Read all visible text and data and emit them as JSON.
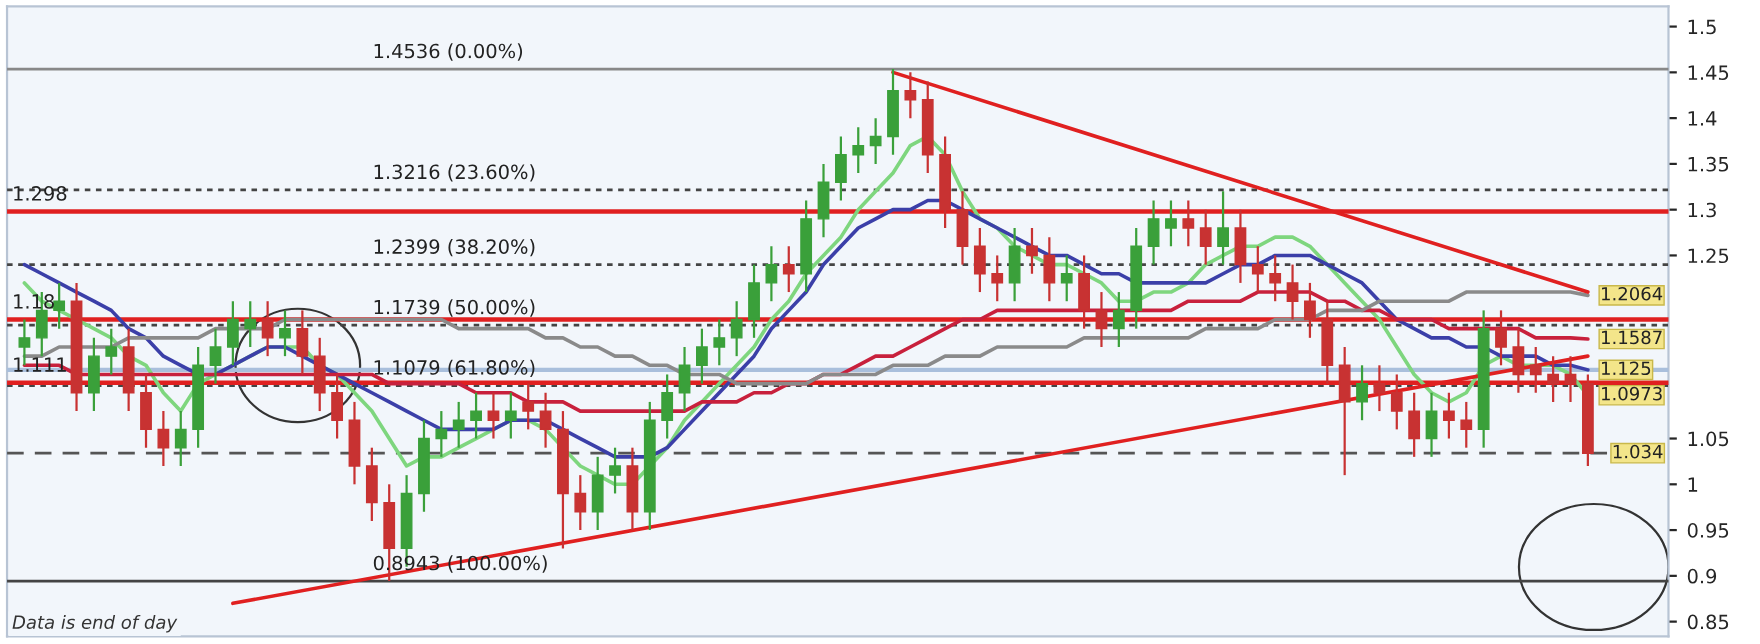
{
  "chart_data": {
    "type": "candlestick",
    "categories": [
      null,
      null,
      null,
      null,
      null,
      null,
      null,
      null,
      null,
      null,
      null,
      null,
      null,
      null,
      null,
      null,
      null,
      null,
      null,
      null,
      null,
      null,
      null,
      null,
      null,
      null,
      null,
      null,
      null,
      null,
      null,
      null,
      null,
      null,
      null,
      null,
      null,
      null,
      null,
      null,
      null,
      null,
      null,
      null,
      null,
      null,
      null,
      null,
      null,
      null,
      null,
      null,
      null,
      null,
      null,
      null,
      null,
      null,
      null,
      null,
      null,
      null,
      null,
      null,
      null,
      null,
      null,
      null,
      null,
      null,
      null,
      null,
      null,
      null,
      null,
      null,
      null,
      null,
      null,
      null,
      null,
      null,
      null,
      null,
      null,
      null,
      null,
      null,
      null,
      null,
      null
    ],
    "ohlc": [
      [
        1.15,
        1.18,
        1.13,
        1.16
      ],
      [
        1.16,
        1.21,
        1.14,
        1.19
      ],
      [
        1.19,
        1.22,
        1.17,
        1.2
      ],
      [
        1.2,
        1.22,
        1.08,
        1.1
      ],
      [
        1.1,
        1.16,
        1.08,
        1.14
      ],
      [
        1.14,
        1.17,
        1.12,
        1.15
      ],
      [
        1.15,
        1.17,
        1.08,
        1.1
      ],
      [
        1.1,
        1.12,
        1.04,
        1.06
      ],
      [
        1.06,
        1.08,
        1.02,
        1.04
      ],
      [
        1.04,
        1.08,
        1.02,
        1.06
      ],
      [
        1.06,
        1.15,
        1.04,
        1.13
      ],
      [
        1.13,
        1.17,
        1.11,
        1.15
      ],
      [
        1.15,
        1.2,
        1.13,
        1.18
      ],
      [
        1.17,
        1.2,
        1.15,
        1.18
      ],
      [
        1.18,
        1.2,
        1.14,
        1.16
      ],
      [
        1.16,
        1.19,
        1.14,
        1.17
      ],
      [
        1.17,
        1.19,
        1.12,
        1.14
      ],
      [
        1.14,
        1.16,
        1.08,
        1.1
      ],
      [
        1.1,
        1.12,
        1.05,
        1.07
      ],
      [
        1.07,
        1.09,
        1.0,
        1.02
      ],
      [
        1.02,
        1.04,
        0.96,
        0.98
      ],
      [
        0.98,
        1.0,
        0.8943,
        0.93
      ],
      [
        0.93,
        1.01,
        0.91,
        0.99
      ],
      [
        0.99,
        1.07,
        0.97,
        1.05
      ],
      [
        1.05,
        1.08,
        1.03,
        1.06
      ],
      [
        1.06,
        1.09,
        1.04,
        1.07
      ],
      [
        1.07,
        1.1,
        1.05,
        1.08
      ],
      [
        1.08,
        1.1,
        1.05,
        1.07
      ],
      [
        1.07,
        1.1,
        1.05,
        1.08
      ],
      [
        1.09,
        1.11,
        1.06,
        1.08
      ],
      [
        1.08,
        1.1,
        1.04,
        1.06
      ],
      [
        1.06,
        1.08,
        0.93,
        0.99
      ],
      [
        0.99,
        1.01,
        0.95,
        0.97
      ],
      [
        0.97,
        1.03,
        0.95,
        1.01
      ],
      [
        1.01,
        1.04,
        0.99,
        1.02
      ],
      [
        1.02,
        1.04,
        0.95,
        0.97
      ],
      [
        0.97,
        1.09,
        0.95,
        1.07
      ],
      [
        1.07,
        1.12,
        1.05,
        1.1
      ],
      [
        1.1,
        1.15,
        1.08,
        1.13
      ],
      [
        1.13,
        1.17,
        1.11,
        1.15
      ],
      [
        1.15,
        1.18,
        1.13,
        1.16
      ],
      [
        1.16,
        1.2,
        1.14,
        1.18
      ],
      [
        1.18,
        1.24,
        1.16,
        1.22
      ],
      [
        1.22,
        1.26,
        1.2,
        1.24
      ],
      [
        1.24,
        1.26,
        1.21,
        1.23
      ],
      [
        1.23,
        1.31,
        1.21,
        1.29
      ],
      [
        1.29,
        1.35,
        1.27,
        1.33
      ],
      [
        1.33,
        1.38,
        1.31,
        1.36
      ],
      [
        1.36,
        1.39,
        1.34,
        1.37
      ],
      [
        1.37,
        1.4,
        1.35,
        1.38
      ],
      [
        1.38,
        1.4536,
        1.36,
        1.43
      ],
      [
        1.43,
        1.45,
        1.4,
        1.42
      ],
      [
        1.42,
        1.44,
        1.34,
        1.36
      ],
      [
        1.36,
        1.38,
        1.28,
        1.3
      ],
      [
        1.3,
        1.32,
        1.24,
        1.26
      ],
      [
        1.26,
        1.28,
        1.21,
        1.23
      ],
      [
        1.23,
        1.25,
        1.2,
        1.22
      ],
      [
        1.22,
        1.28,
        1.2,
        1.26
      ],
      [
        1.26,
        1.28,
        1.23,
        1.25
      ],
      [
        1.25,
        1.27,
        1.2,
        1.22
      ],
      [
        1.22,
        1.25,
        1.2,
        1.23
      ],
      [
        1.23,
        1.25,
        1.17,
        1.19
      ],
      [
        1.19,
        1.21,
        1.15,
        1.17
      ],
      [
        1.17,
        1.21,
        1.15,
        1.19
      ],
      [
        1.19,
        1.28,
        1.17,
        1.26
      ],
      [
        1.26,
        1.31,
        1.24,
        1.29
      ],
      [
        1.28,
        1.31,
        1.26,
        1.29
      ],
      [
        1.29,
        1.31,
        1.26,
        1.28
      ],
      [
        1.28,
        1.3,
        1.24,
        1.26
      ],
      [
        1.26,
        1.32,
        1.24,
        1.28
      ],
      [
        1.28,
        1.3,
        1.22,
        1.24
      ],
      [
        1.24,
        1.26,
        1.21,
        1.23
      ],
      [
        1.23,
        1.25,
        1.2,
        1.22
      ],
      [
        1.22,
        1.24,
        1.18,
        1.2
      ],
      [
        1.2,
        1.22,
        1.16,
        1.18
      ],
      [
        1.18,
        1.2,
        1.11,
        1.13
      ],
      [
        1.13,
        1.15,
        1.01,
        1.09
      ],
      [
        1.09,
        1.13,
        1.07,
        1.11
      ],
      [
        1.11,
        1.13,
        1.08,
        1.1
      ],
      [
        1.1,
        1.12,
        1.06,
        1.08
      ],
      [
        1.08,
        1.1,
        1.03,
        1.05
      ],
      [
        1.05,
        1.1,
        1.03,
        1.08
      ],
      [
        1.08,
        1.1,
        1.05,
        1.07
      ],
      [
        1.07,
        1.09,
        1.04,
        1.06
      ],
      [
        1.06,
        1.19,
        1.04,
        1.17
      ],
      [
        1.17,
        1.19,
        1.13,
        1.15
      ],
      [
        1.15,
        1.17,
        1.1,
        1.12
      ],
      [
        1.13,
        1.15,
        1.1,
        1.12
      ],
      [
        1.12,
        1.14,
        1.09,
        1.11
      ],
      [
        1.12,
        1.14,
        1.09,
        1.11
      ],
      [
        1.11,
        1.12,
        1.02,
        1.034
      ]
    ],
    "series": [
      {
        "type": "line",
        "color": "#7ed67e",
        "values": [
          1.22,
          1.2,
          1.19,
          1.18,
          1.17,
          1.16,
          1.14,
          1.13,
          1.1,
          1.08,
          1.11,
          1.12,
          1.13,
          1.14,
          1.15,
          1.15,
          1.15,
          1.13,
          1.12,
          1.1,
          1.08,
          1.05,
          1.02,
          1.03,
          1.03,
          1.04,
          1.05,
          1.06,
          1.07,
          1.07,
          1.06,
          1.04,
          1.02,
          1.01,
          1.0,
          1.0,
          1.02,
          1.04,
          1.07,
          1.09,
          1.11,
          1.13,
          1.15,
          1.18,
          1.2,
          1.23,
          1.25,
          1.27,
          1.3,
          1.32,
          1.34,
          1.37,
          1.38,
          1.36,
          1.32,
          1.29,
          1.28,
          1.26,
          1.25,
          1.24,
          1.24,
          1.23,
          1.22,
          1.2,
          1.2,
          1.21,
          1.21,
          1.22,
          1.24,
          1.25,
          1.26,
          1.26,
          1.27,
          1.27,
          1.26,
          1.24,
          1.22,
          1.2,
          1.18,
          1.15,
          1.12,
          1.1,
          1.09,
          1.1,
          1.13,
          1.14,
          1.13,
          1.13,
          1.13,
          1.12,
          1.0973
        ],
        "value_labels": [
          null,
          null,
          null,
          null,
          null,
          null,
          null,
          null,
          null,
          null,
          null,
          null,
          null,
          null,
          null,
          null,
          null,
          null,
          null,
          null,
          null,
          null,
          null,
          null,
          null,
          null,
          null,
          null,
          null,
          null,
          null,
          null,
          null,
          null,
          null,
          null,
          null,
          null,
          null,
          null,
          null,
          null,
          null,
          null,
          null,
          null,
          null,
          null,
          null,
          null,
          null,
          null,
          null,
          null,
          null,
          null,
          null,
          null,
          null,
          null,
          null,
          null,
          null,
          null,
          null,
          null,
          null,
          null,
          null,
          null,
          null,
          null,
          null,
          null,
          null,
          null,
          null,
          null,
          null,
          null,
          null,
          null,
          null,
          null,
          null,
          null,
          null,
          null,
          null,
          null,
          "1.0973"
        ]
      },
      {
        "type": "line",
        "color": "#3b3fa8",
        "values": [
          1.24,
          1.23,
          1.22,
          1.21,
          1.2,
          1.19,
          1.17,
          1.16,
          1.14,
          1.13,
          1.12,
          1.12,
          1.13,
          1.14,
          1.15,
          1.15,
          1.14,
          1.13,
          1.12,
          1.11,
          1.1,
          1.09,
          1.08,
          1.07,
          1.06,
          1.06,
          1.06,
          1.06,
          1.07,
          1.07,
          1.07,
          1.06,
          1.05,
          1.04,
          1.03,
          1.03,
          1.03,
          1.04,
          1.06,
          1.08,
          1.1,
          1.12,
          1.14,
          1.17,
          1.19,
          1.21,
          1.24,
          1.26,
          1.28,
          1.29,
          1.3,
          1.3,
          1.31,
          1.31,
          1.3,
          1.29,
          1.28,
          1.27,
          1.26,
          1.25,
          1.25,
          1.24,
          1.23,
          1.23,
          1.22,
          1.22,
          1.22,
          1.22,
          1.22,
          1.23,
          1.24,
          1.24,
          1.25,
          1.25,
          1.25,
          1.24,
          1.23,
          1.22,
          1.2,
          1.18,
          1.17,
          1.16,
          1.16,
          1.15,
          1.15,
          1.14,
          1.14,
          1.14,
          1.13,
          1.13,
          1.125
        ],
        "value_labels": [
          null,
          null,
          null,
          null,
          null,
          null,
          null,
          null,
          null,
          null,
          null,
          null,
          null,
          null,
          null,
          null,
          null,
          null,
          null,
          null,
          null,
          null,
          null,
          null,
          null,
          null,
          null,
          null,
          null,
          null,
          null,
          null,
          null,
          null,
          null,
          null,
          null,
          null,
          null,
          null,
          null,
          null,
          null,
          null,
          null,
          null,
          null,
          null,
          null,
          null,
          null,
          null,
          null,
          null,
          null,
          null,
          null,
          null,
          null,
          null,
          null,
          null,
          null,
          null,
          null,
          null,
          null,
          null,
          null,
          null,
          null,
          null,
          null,
          null,
          null,
          null,
          null,
          null,
          null,
          null,
          null,
          null,
          null,
          null,
          null,
          null,
          null,
          null,
          null,
          null,
          "1.125"
        ]
      },
      {
        "type": "line",
        "color": "#c8203c",
        "values": [
          1.13,
          1.13,
          1.13,
          1.12,
          1.12,
          1.12,
          1.12,
          1.12,
          1.12,
          1.12,
          1.12,
          1.12,
          1.12,
          1.12,
          1.12,
          1.12,
          1.12,
          1.12,
          1.12,
          1.12,
          1.12,
          1.11,
          1.11,
          1.11,
          1.11,
          1.11,
          1.1,
          1.1,
          1.1,
          1.09,
          1.09,
          1.09,
          1.08,
          1.08,
          1.08,
          1.08,
          1.08,
          1.08,
          1.08,
          1.09,
          1.09,
          1.09,
          1.1,
          1.1,
          1.11,
          1.11,
          1.12,
          1.12,
          1.13,
          1.14,
          1.14,
          1.15,
          1.16,
          1.17,
          1.18,
          1.18,
          1.19,
          1.19,
          1.19,
          1.19,
          1.19,
          1.19,
          1.19,
          1.19,
          1.19,
          1.19,
          1.19,
          1.2,
          1.2,
          1.2,
          1.2,
          1.21,
          1.21,
          1.21,
          1.21,
          1.2,
          1.2,
          1.19,
          1.19,
          1.18,
          1.18,
          1.18,
          1.17,
          1.17,
          1.17,
          1.17,
          1.17,
          1.16,
          1.16,
          1.16,
          1.1587
        ],
        "value_labels": [
          null,
          null,
          null,
          null,
          null,
          null,
          null,
          null,
          null,
          null,
          null,
          null,
          null,
          null,
          null,
          null,
          null,
          null,
          null,
          null,
          null,
          null,
          null,
          null,
          null,
          null,
          null,
          null,
          null,
          null,
          null,
          null,
          null,
          null,
          null,
          null,
          null,
          null,
          null,
          null,
          null,
          null,
          null,
          null,
          null,
          null,
          null,
          null,
          null,
          null,
          null,
          null,
          null,
          null,
          null,
          null,
          null,
          null,
          null,
          null,
          null,
          null,
          null,
          null,
          null,
          null,
          null,
          null,
          null,
          null,
          null,
          null,
          null,
          null,
          null,
          null,
          null,
          null,
          null,
          null,
          null,
          null,
          null,
          null,
          null,
          null,
          null,
          null,
          null,
          null,
          "1.1587"
        ]
      },
      {
        "type": "line",
        "color": "#8a8a8a",
        "values": [
          1.14,
          1.14,
          1.15,
          1.15,
          1.15,
          1.15,
          1.16,
          1.16,
          1.16,
          1.16,
          1.16,
          1.17,
          1.17,
          1.17,
          1.17,
          1.18,
          1.18,
          1.18,
          1.18,
          1.18,
          1.18,
          1.18,
          1.18,
          1.18,
          1.18,
          1.17,
          1.17,
          1.17,
          1.17,
          1.17,
          1.16,
          1.16,
          1.15,
          1.15,
          1.14,
          1.14,
          1.13,
          1.13,
          1.12,
          1.12,
          1.12,
          1.11,
          1.11,
          1.11,
          1.11,
          1.11,
          1.12,
          1.12,
          1.12,
          1.12,
          1.13,
          1.13,
          1.13,
          1.14,
          1.14,
          1.14,
          1.15,
          1.15,
          1.15,
          1.15,
          1.15,
          1.16,
          1.16,
          1.16,
          1.16,
          1.16,
          1.16,
          1.16,
          1.17,
          1.17,
          1.17,
          1.17,
          1.18,
          1.18,
          1.18,
          1.19,
          1.19,
          1.19,
          1.2,
          1.2,
          1.2,
          1.2,
          1.2,
          1.21,
          1.21,
          1.21,
          1.21,
          1.21,
          1.21,
          1.21,
          1.2064
        ],
        "value_labels": [
          null,
          null,
          null,
          null,
          null,
          null,
          null,
          null,
          null,
          null,
          null,
          null,
          null,
          null,
          null,
          null,
          null,
          null,
          null,
          null,
          null,
          null,
          null,
          null,
          null,
          null,
          null,
          null,
          null,
          null,
          null,
          null,
          null,
          null,
          null,
          null,
          null,
          null,
          null,
          null,
          null,
          null,
          null,
          null,
          null,
          null,
          null,
          null,
          null,
          null,
          null,
          null,
          null,
          null,
          null,
          null,
          null,
          null,
          null,
          null,
          null,
          null,
          null,
          null,
          null,
          null,
          null,
          null,
          null,
          null,
          null,
          null,
          null,
          null,
          null,
          null,
          null,
          null,
          null,
          null,
          null,
          null,
          null,
          null,
          null,
          null,
          null,
          null,
          null,
          null,
          "1.2064"
        ]
      },
      {
        "type": "line",
        "color": "#e02020",
        "values": [
          null,
          null,
          null,
          null,
          null,
          null,
          null,
          null,
          null,
          null,
          null,
          null,
          0.87,
          null,
          null,
          null,
          null,
          null,
          null,
          null,
          null,
          null,
          null,
          null,
          null,
          null,
          null,
          null,
          null,
          null,
          null,
          null,
          null,
          null,
          null,
          null,
          null,
          null,
          null,
          null,
          null,
          null,
          null,
          null,
          null,
          null,
          null,
          null,
          null,
          null,
          null,
          null,
          null,
          null,
          null,
          null,
          null,
          null,
          null,
          null,
          null,
          null,
          null,
          null,
          null,
          null,
          null,
          null,
          null,
          null,
          null,
          null,
          null,
          null,
          null,
          null,
          null,
          null,
          null,
          null,
          null,
          null,
          null,
          null,
          null,
          null,
          null,
          null,
          null,
          null,
          1.14
        ]
      },
      {
        "type": "line",
        "color": "#e02020",
        "values": [
          null,
          null,
          null,
          null,
          null,
          null,
          null,
          null,
          null,
          null,
          null,
          null,
          null,
          null,
          null,
          null,
          null,
          null,
          null,
          null,
          null,
          null,
          null,
          null,
          null,
          null,
          null,
          null,
          null,
          null,
          null,
          null,
          null,
          null,
          null,
          null,
          null,
          null,
          null,
          null,
          null,
          null,
          null,
          null,
          null,
          null,
          null,
          null,
          null,
          null,
          1.45,
          null,
          null,
          null,
          null,
          null,
          null,
          null,
          null,
          null,
          null,
          null,
          null,
          null,
          null,
          null,
          null,
          null,
          null,
          null,
          null,
          null,
          null,
          null,
          null,
          null,
          null,
          null,
          null,
          null,
          null,
          null,
          null,
          null,
          null,
          null,
          null,
          null,
          null,
          null,
          1.21
        ]
      }
    ],
    "ref_lines": [
      {
        "axis": "y",
        "value": 1.4536,
        "label": "1.4536 (0.00%)",
        "color": "#888888",
        "line_style": "solid"
      },
      {
        "axis": "y",
        "value": 1.3216,
        "label": "1.3216 (23.60%)",
        "color": "#444444",
        "line_style": "dotted"
      },
      {
        "axis": "y",
        "value": 1.2399,
        "label": "1.2399 (38.20%)",
        "color": "#444444",
        "line_style": "dotted"
      },
      {
        "axis": "y",
        "value": 1.1739,
        "label": "1.1739 (50.00%)",
        "color": "#444444",
        "line_style": "dotted"
      },
      {
        "axis": "y",
        "value": 1.1079,
        "label": "1.1079 (61.80%)",
        "color": "#444444",
        "line_style": "dotted"
      },
      {
        "axis": "y",
        "value": 0.8943,
        "label": "0.8943 (100.00%)",
        "color": "#444444",
        "line_style": "solid"
      },
      {
        "axis": "y",
        "value": 1.298,
        "label": "1.298",
        "color": "#e02020"
      },
      {
        "axis": "y",
        "value": 1.18,
        "label": "1.18",
        "color": "#e02020"
      },
      {
        "axis": "y",
        "value": 1.111,
        "label": "1.111",
        "color": "#e02020"
      },
      {
        "axis": "y",
        "value": 1.125,
        "color": "#a9bfdc"
      },
      {
        "axis": "y",
        "value": 1.034,
        "label": "1.034",
        "color": "#555555",
        "line_style": "dashed"
      }
    ],
    "annotations": [
      "Data is end of day"
    ],
    "ylim": [
      0.834,
      1.522
    ],
    "yticks": [
      0.85,
      0.9,
      0.95,
      {
        "value": 1,
        "label": "1"
      },
      1.05,
      1.25,
      1.3,
      1.35,
      1.4,
      1.45,
      1.5
    ],
    "tick_labels": "y",
    "grid": false,
    "legend": false
  }
}
